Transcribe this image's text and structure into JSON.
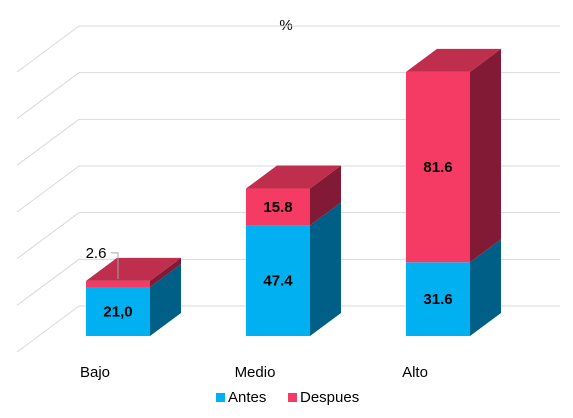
{
  "chart_data": {
    "type": "bar",
    "stacked": true,
    "three_d": true,
    "title": "%",
    "categories": [
      "Bajo",
      "Medio",
      "Alto"
    ],
    "series": [
      {
        "name": "Antes",
        "values": [
          21.0,
          47.4,
          31.6
        ],
        "labels": [
          "21,0",
          "47.4",
          "31.6"
        ],
        "color": "#00b0f0",
        "side_color": "#005f86"
      },
      {
        "name": "Despues",
        "values": [
          2.6,
          15.8,
          81.6
        ],
        "labels": [
          "2.6",
          "15.8",
          "81.6"
        ],
        "color": "#f53b63",
        "side_color": "#831a35"
      }
    ],
    "ylim": [
      0,
      120
    ],
    "grid": true,
    "axis_labels_visible": false,
    "legend_position": "bottom"
  }
}
